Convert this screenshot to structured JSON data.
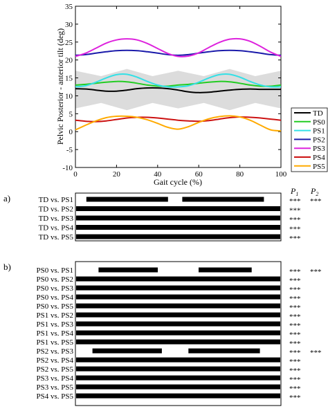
{
  "chart_data": [
    {
      "type": "line",
      "ylabel": "Pelvic  Posterior - anterior tilt (deg)",
      "xlabel": "Gait cycle (%)",
      "xlim": [
        0,
        100
      ],
      "ylim": [
        -10,
        35
      ],
      "xticks": [
        "0",
        "20",
        "40",
        "60",
        "80",
        "100"
      ],
      "yticks": [
        "-10",
        "-5",
        "0",
        "5",
        "10",
        "15",
        "20",
        "25",
        "30",
        "35"
      ],
      "legend_position": "right",
      "band": {
        "x": [
          0,
          12.5,
          25,
          37.5,
          50,
          62.5,
          75,
          87.5,
          100
        ],
        "upper": [
          17,
          15.5,
          17.5,
          15.5,
          17,
          15.5,
          17.5,
          15.5,
          17
        ],
        "lower": [
          6.5,
          8,
          6,
          8,
          6.5,
          8,
          6,
          8,
          6.5
        ],
        "color": "#dcdcdc"
      },
      "x": [
        0,
        5,
        10,
        15,
        20,
        25,
        30,
        35,
        40,
        45,
        50,
        55,
        60,
        65,
        70,
        75,
        80,
        85,
        90,
        95,
        100
      ],
      "series": [
        {
          "name": "TD",
          "color": "#000000",
          "values": [
            12,
            11.9,
            11.6,
            11.3,
            11.3,
            11.6,
            12,
            12.2,
            12.2,
            12,
            11.6,
            11.1,
            10.9,
            11,
            11.3,
            11.6,
            11.8,
            11.9,
            11.8,
            11.8,
            11.8
          ]
        },
        {
          "name": "PS0",
          "color": "#22cc22",
          "values": [
            13,
            13.2,
            13.5,
            13.8,
            14.0,
            13.9,
            13.5,
            13.0,
            12.7,
            12.7,
            13,
            13.2,
            13.5,
            13.8,
            14.0,
            13.9,
            13.5,
            13.0,
            12.7,
            12.7,
            13
          ]
        },
        {
          "name": "PS1",
          "color": "#33e0e6",
          "values": [
            12.5,
            12.8,
            13.8,
            15.0,
            15.9,
            16.0,
            15.2,
            14.0,
            13.0,
            12.5,
            12.5,
            12.8,
            13.8,
            15.0,
            15.9,
            16.0,
            15.2,
            14.0,
            13.0,
            12.5,
            12.5
          ]
        },
        {
          "name": "PS2",
          "color": "#1a1aaa",
          "values": [
            21.3,
            21.5,
            21.9,
            22.3,
            22.6,
            22.7,
            22.6,
            22.3,
            21.9,
            21.5,
            21.3,
            21.5,
            21.9,
            22.3,
            22.6,
            22.7,
            22.6,
            22.3,
            21.9,
            21.5,
            21.3
          ]
        },
        {
          "name": "PS3",
          "color": "#dd22dd",
          "values": [
            21.0,
            21.9,
            23.3,
            24.7,
            25.6,
            25.9,
            25.6,
            24.6,
            23.2,
            21.8,
            21.0,
            21.1,
            22.0,
            23.5,
            24.9,
            25.8,
            25.9,
            25.2,
            23.8,
            22.2,
            21.0
          ]
        },
        {
          "name": "PS4",
          "color": "#cc1111",
          "values": [
            3.2,
            2.9,
            2.8,
            3.0,
            3.4,
            3.8,
            4.0,
            4.0,
            3.8,
            3.5,
            3.2,
            3.0,
            2.9,
            3.1,
            3.5,
            3.9,
            4.1,
            4.0,
            3.8,
            3.5,
            3.2
          ]
        },
        {
          "name": "PS5",
          "color": "#ffaa00",
          "values": [
            0.5,
            1.8,
            3.0,
            3.9,
            4.3,
            4.3,
            4.0,
            3.3,
            2.3,
            1.2,
            0.7,
            1.4,
            2.6,
            3.6,
            4.2,
            4.4,
            4.1,
            3.2,
            1.8,
            0.5,
            0.2
          ]
        }
      ]
    },
    {
      "type": "bar",
      "panel_label": "a)",
      "p_headers": {
        "p1": "P",
        "p1_sub": "1",
        "p2": "P",
        "p2_sub": "2"
      },
      "rows": [
        {
          "label": "TD vs. PS1",
          "p1": "***",
          "p2": "***",
          "segments": [
            [
              5,
              45
            ],
            [
              52,
              92
            ]
          ]
        },
        {
          "label": "TD vs. PS2",
          "p1": "***",
          "p2": "",
          "segments": [
            [
              0,
              100
            ]
          ]
        },
        {
          "label": "TD vs. PS3",
          "p1": "***",
          "p2": "",
          "segments": [
            [
              0,
              100
            ]
          ]
        },
        {
          "label": "TD vs. PS4",
          "p1": "***",
          "p2": "",
          "segments": [
            [
              0,
              100
            ]
          ]
        },
        {
          "label": "TD vs. PS5",
          "p1": "***",
          "p2": "",
          "segments": [
            [
              0,
              100
            ]
          ]
        }
      ]
    },
    {
      "type": "bar",
      "panel_label": "b)",
      "rows": [
        {
          "label": "PS0 vs. PS1",
          "p1": "***",
          "p2": "***",
          "segments": [
            [
              11,
              40
            ],
            [
              60,
              86
            ]
          ]
        },
        {
          "label": "PS0 vs. PS2",
          "p1": "***",
          "p2": "",
          "segments": [
            [
              0,
              100
            ]
          ]
        },
        {
          "label": "PS0 vs. PS3",
          "p1": "***",
          "p2": "",
          "segments": [
            [
              0,
              100
            ]
          ]
        },
        {
          "label": "PS0 vs. PS4",
          "p1": "***",
          "p2": "",
          "segments": [
            [
              0,
              100
            ]
          ]
        },
        {
          "label": "PS0 vs. PS5",
          "p1": "***",
          "p2": "",
          "segments": [
            [
              0,
              100
            ]
          ]
        },
        {
          "label": "PS1 vs. PS2",
          "p1": "***",
          "p2": "",
          "segments": [
            [
              0,
              100
            ]
          ]
        },
        {
          "label": "PS1 vs. PS3",
          "p1": "***",
          "p2": "",
          "segments": [
            [
              0,
              100
            ]
          ]
        },
        {
          "label": "PS1 vs. PS4",
          "p1": "***",
          "p2": "",
          "segments": [
            [
              0,
              100
            ]
          ]
        },
        {
          "label": "PS1 vs. PS5",
          "p1": "***",
          "p2": "",
          "segments": [
            [
              0,
              100
            ]
          ]
        },
        {
          "label": "PS2 vs. PS3",
          "p1": "***",
          "p2": "***",
          "segments": [
            [
              8,
              42
            ],
            [
              55,
              90
            ]
          ]
        },
        {
          "label": "PS2 vs. PS4",
          "p1": "***",
          "p2": "",
          "segments": [
            [
              0,
              100
            ]
          ]
        },
        {
          "label": "PS2 vs. PS5",
          "p1": "***",
          "p2": "",
          "segments": [
            [
              0,
              100
            ]
          ]
        },
        {
          "label": "PS3 vs. PS4",
          "p1": "***",
          "p2": "",
          "segments": [
            [
              0,
              100
            ]
          ]
        },
        {
          "label": "PS3 vs. PS5",
          "p1": "***",
          "p2": "",
          "segments": [
            [
              0,
              100
            ]
          ]
        },
        {
          "label": "PS4 vs. PS5",
          "p1": "***",
          "p2": "",
          "segments": [
            [
              0,
              100
            ]
          ]
        }
      ]
    }
  ]
}
